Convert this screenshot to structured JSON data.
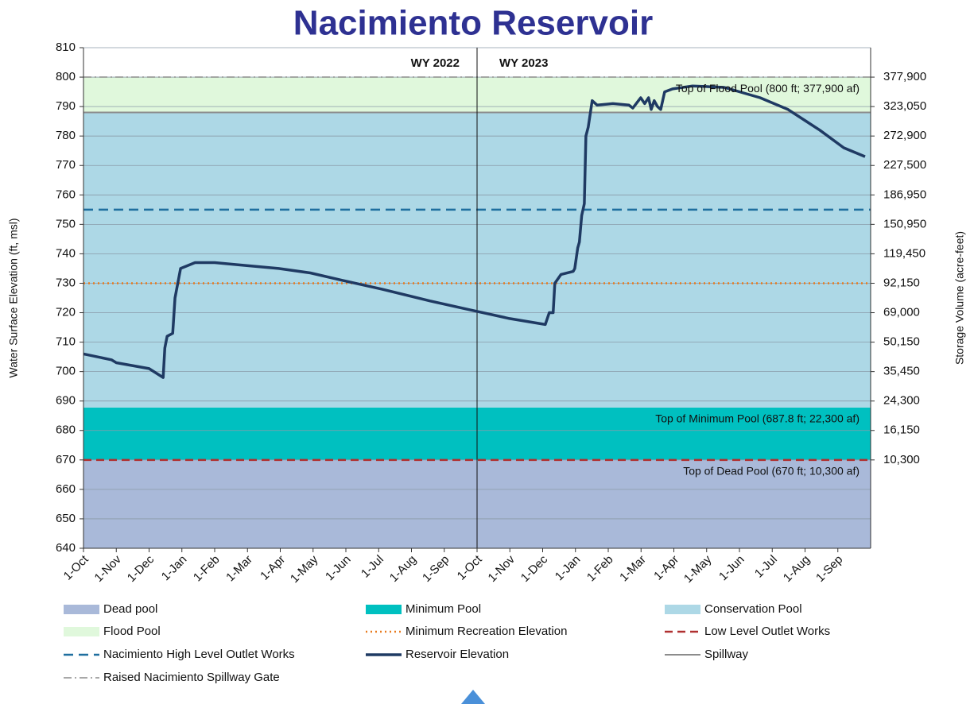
{
  "chart_data": {
    "type": "line",
    "title": "Nacimiento Reservoir",
    "y_label": "Water Surface Elevation (ft, msl)",
    "y2_label": "Storage Volume (acre-feet)",
    "xlim": [
      0,
      24
    ],
    "xticks": [
      {
        "value": 0,
        "label": "1-Oct"
      },
      {
        "value": 1,
        "label": "1-Nov"
      },
      {
        "value": 2,
        "label": "1-Dec"
      },
      {
        "value": 3,
        "label": "1-Jan"
      },
      {
        "value": 4,
        "label": "1-Feb"
      },
      {
        "value": 5,
        "label": "1-Mar"
      },
      {
        "value": 6,
        "label": "1-Apr"
      },
      {
        "value": 7,
        "label": "1-May"
      },
      {
        "value": 8,
        "label": "1-Jun"
      },
      {
        "value": 9,
        "label": "1-Jul"
      },
      {
        "value": 10,
        "label": "1-Aug"
      },
      {
        "value": 11,
        "label": "1-Sep"
      },
      {
        "value": 12,
        "label": "1-Oct"
      },
      {
        "value": 13,
        "label": "1-Nov"
      },
      {
        "value": 14,
        "label": "1-Dec"
      },
      {
        "value": 15,
        "label": "1-Jan"
      },
      {
        "value": 16,
        "label": "1-Feb"
      },
      {
        "value": 17,
        "label": "1-Mar"
      },
      {
        "value": 18,
        "label": "1-Apr"
      },
      {
        "value": 19,
        "label": "1-May"
      },
      {
        "value": 20,
        "label": "1-Jun"
      },
      {
        "value": 21,
        "label": "1-Jul"
      },
      {
        "value": 22,
        "label": "1-Aug"
      },
      {
        "value": 23,
        "label": "1-Sep"
      }
    ],
    "ylim": [
      640,
      810
    ],
    "yticks": [
      640,
      650,
      660,
      670,
      680,
      690,
      700,
      710,
      720,
      730,
      740,
      750,
      760,
      770,
      780,
      790,
      800,
      810
    ],
    "y2ticks": [
      {
        "elevation": 800,
        "value": 377900,
        "label": "377,900"
      },
      {
        "elevation": 790,
        "value": 323050,
        "label": "323,050"
      },
      {
        "elevation": 780,
        "value": 272900,
        "label": "272,900"
      },
      {
        "elevation": 770,
        "value": 227500,
        "label": "227,500"
      },
      {
        "elevation": 760,
        "value": 186950,
        "label": "186,950"
      },
      {
        "elevation": 750,
        "value": 150950,
        "label": "150,950"
      },
      {
        "elevation": 740,
        "value": 119450,
        "label": "119,450"
      },
      {
        "elevation": 730,
        "value": 92150,
        "label": "92,150"
      },
      {
        "elevation": 720,
        "value": 69000,
        "label": "69,000"
      },
      {
        "elevation": 710,
        "value": 50150,
        "label": "50,150"
      },
      {
        "elevation": 700,
        "value": 35450,
        "label": "35,450"
      },
      {
        "elevation": 690,
        "value": 24300,
        "label": "24,300"
      },
      {
        "elevation": 680,
        "value": 16150,
        "label": "16,150"
      },
      {
        "elevation": 670,
        "value": 10300,
        "label": "10,300"
      }
    ],
    "grid": true,
    "divider": {
      "x": 12,
      "left_label": "WY 2022",
      "right_label": "WY 2023"
    },
    "annotations": [
      {
        "text": "Top of Flood Pool (800 ft; 377,900 af)",
        "y": 800
      },
      {
        "text": "Top of Minimum Pool (687.8 ft; 22,300 af)",
        "y": 687.8
      },
      {
        "text": "Top of Dead Pool (670 ft; 10,300 af)",
        "y": 670
      }
    ],
    "layers": [
      {
        "name": "Dead pool",
        "kind": "band",
        "color": "#a9b9d9",
        "from": 640,
        "to": 670
      },
      {
        "name": "Minimum Pool",
        "kind": "band",
        "color": "#00c0c0",
        "from": 670,
        "to": 687.8
      },
      {
        "name": "Conservation Pool",
        "kind": "band",
        "color": "#add8e6",
        "from": 687.8,
        "to": 788
      },
      {
        "name": "Flood Pool",
        "kind": "band",
        "color": "#e0f8dc",
        "from": 788,
        "to": 800
      },
      {
        "name": "Minimum Recreation Elevation",
        "kind": "line",
        "color": "#e87a1e",
        "dash": "2 4",
        "width": 2.5,
        "value": 730
      },
      {
        "name": "Low Level Outlet Works",
        "kind": "line",
        "color": "#b03030",
        "dash": "10 6",
        "width": 2.5,
        "value": 670
      },
      {
        "name": "Nacimiento High Level Outlet Works",
        "kind": "line",
        "color": "#1f6f9f",
        "dash": "12 7",
        "width": 2.5,
        "value": 755
      },
      {
        "name": "Reservoir Elevation",
        "kind": "series",
        "color": "#1f3a63",
        "width": 3.5,
        "x": [
          0,
          0.85,
          1.0,
          2.0,
          2.43,
          2.48,
          2.55,
          2.72,
          2.79,
          2.96,
          3.4,
          4.0,
          4.98,
          5.95,
          6.92,
          7.89,
          9.1,
          10.56,
          11.77,
          12.99,
          14.08,
          14.2,
          14.32,
          14.37,
          14.56,
          14.93,
          14.98,
          15.07,
          15.12,
          15.19,
          15.27,
          15.32,
          15.39,
          15.51,
          15.66,
          16.14,
          16.63,
          16.75,
          16.99,
          17.11,
          17.23,
          17.31,
          17.4,
          17.5,
          17.6,
          17.72,
          17.96,
          18.57,
          19.54,
          20.63,
          21.48,
          22.45,
          23.18,
          23.83
        ],
        "values": [
          706,
          704,
          703,
          701,
          698,
          708,
          712,
          713,
          725,
          735,
          737,
          737,
          736,
          735,
          733.5,
          731,
          728,
          724,
          721,
          718,
          716,
          720,
          720,
          730,
          733,
          734,
          735,
          742,
          744,
          753,
          757,
          780,
          783,
          792,
          790.5,
          791,
          790.5,
          789.5,
          793,
          791,
          793,
          789,
          792,
          790,
          789,
          795,
          796,
          797,
          796.5,
          793,
          789,
          782,
          776,
          773
        ]
      },
      {
        "name": "Spillway",
        "kind": "line",
        "color": "#8c8c8c",
        "width": 2,
        "value": 788
      },
      {
        "name": "Raised Nacimiento Spillway Gate",
        "kind": "line",
        "color": "#8c8c8c",
        "dash": "10 4 2 4",
        "width": 1.5,
        "value": 800
      }
    ]
  }
}
